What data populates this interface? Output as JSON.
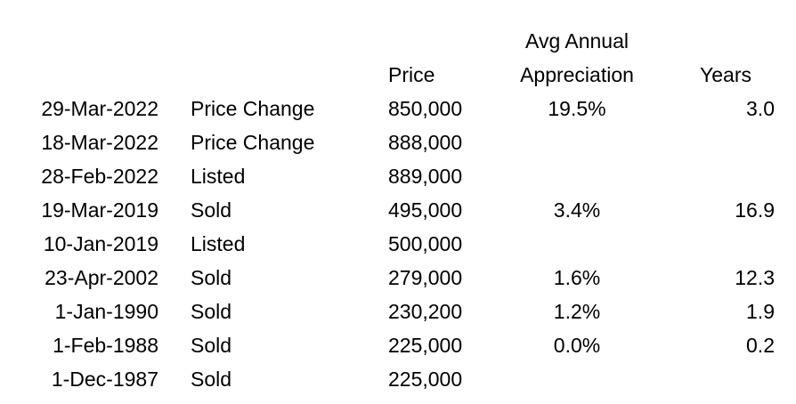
{
  "headers": {
    "appreciation_line1": "Avg Annual",
    "appreciation_line2": "Appreciation",
    "price": "Price",
    "years": "Years"
  },
  "rows": [
    {
      "date": "29-Mar-2022",
      "event": "Price Change",
      "price": "850,000",
      "appreciation": "19.5%",
      "years": "3.0"
    },
    {
      "date": "18-Mar-2022",
      "event": "Price Change",
      "price": "888,000",
      "appreciation": "",
      "years": ""
    },
    {
      "date": "28-Feb-2022",
      "event": "Listed",
      "price": "889,000",
      "appreciation": "",
      "years": ""
    },
    {
      "date": "19-Mar-2019",
      "event": "Sold",
      "price": "495,000",
      "appreciation": "3.4%",
      "years": "16.9"
    },
    {
      "date": "10-Jan-2019",
      "event": "Listed",
      "price": "500,000",
      "appreciation": "",
      "years": ""
    },
    {
      "date": "23-Apr-2002",
      "event": "Sold",
      "price": "279,000",
      "appreciation": "1.6%",
      "years": "12.3"
    },
    {
      "date": "1-Jan-1990",
      "event": "Sold",
      "price": "230,200",
      "appreciation": "1.2%",
      "years": "1.9"
    },
    {
      "date": "1-Feb-1988",
      "event": "Sold",
      "price": "225,000",
      "appreciation": "0.0%",
      "years": "0.2"
    },
    {
      "date": "1-Dec-1987",
      "event": "Sold",
      "price": "225,000",
      "appreciation": "",
      "years": ""
    }
  ]
}
